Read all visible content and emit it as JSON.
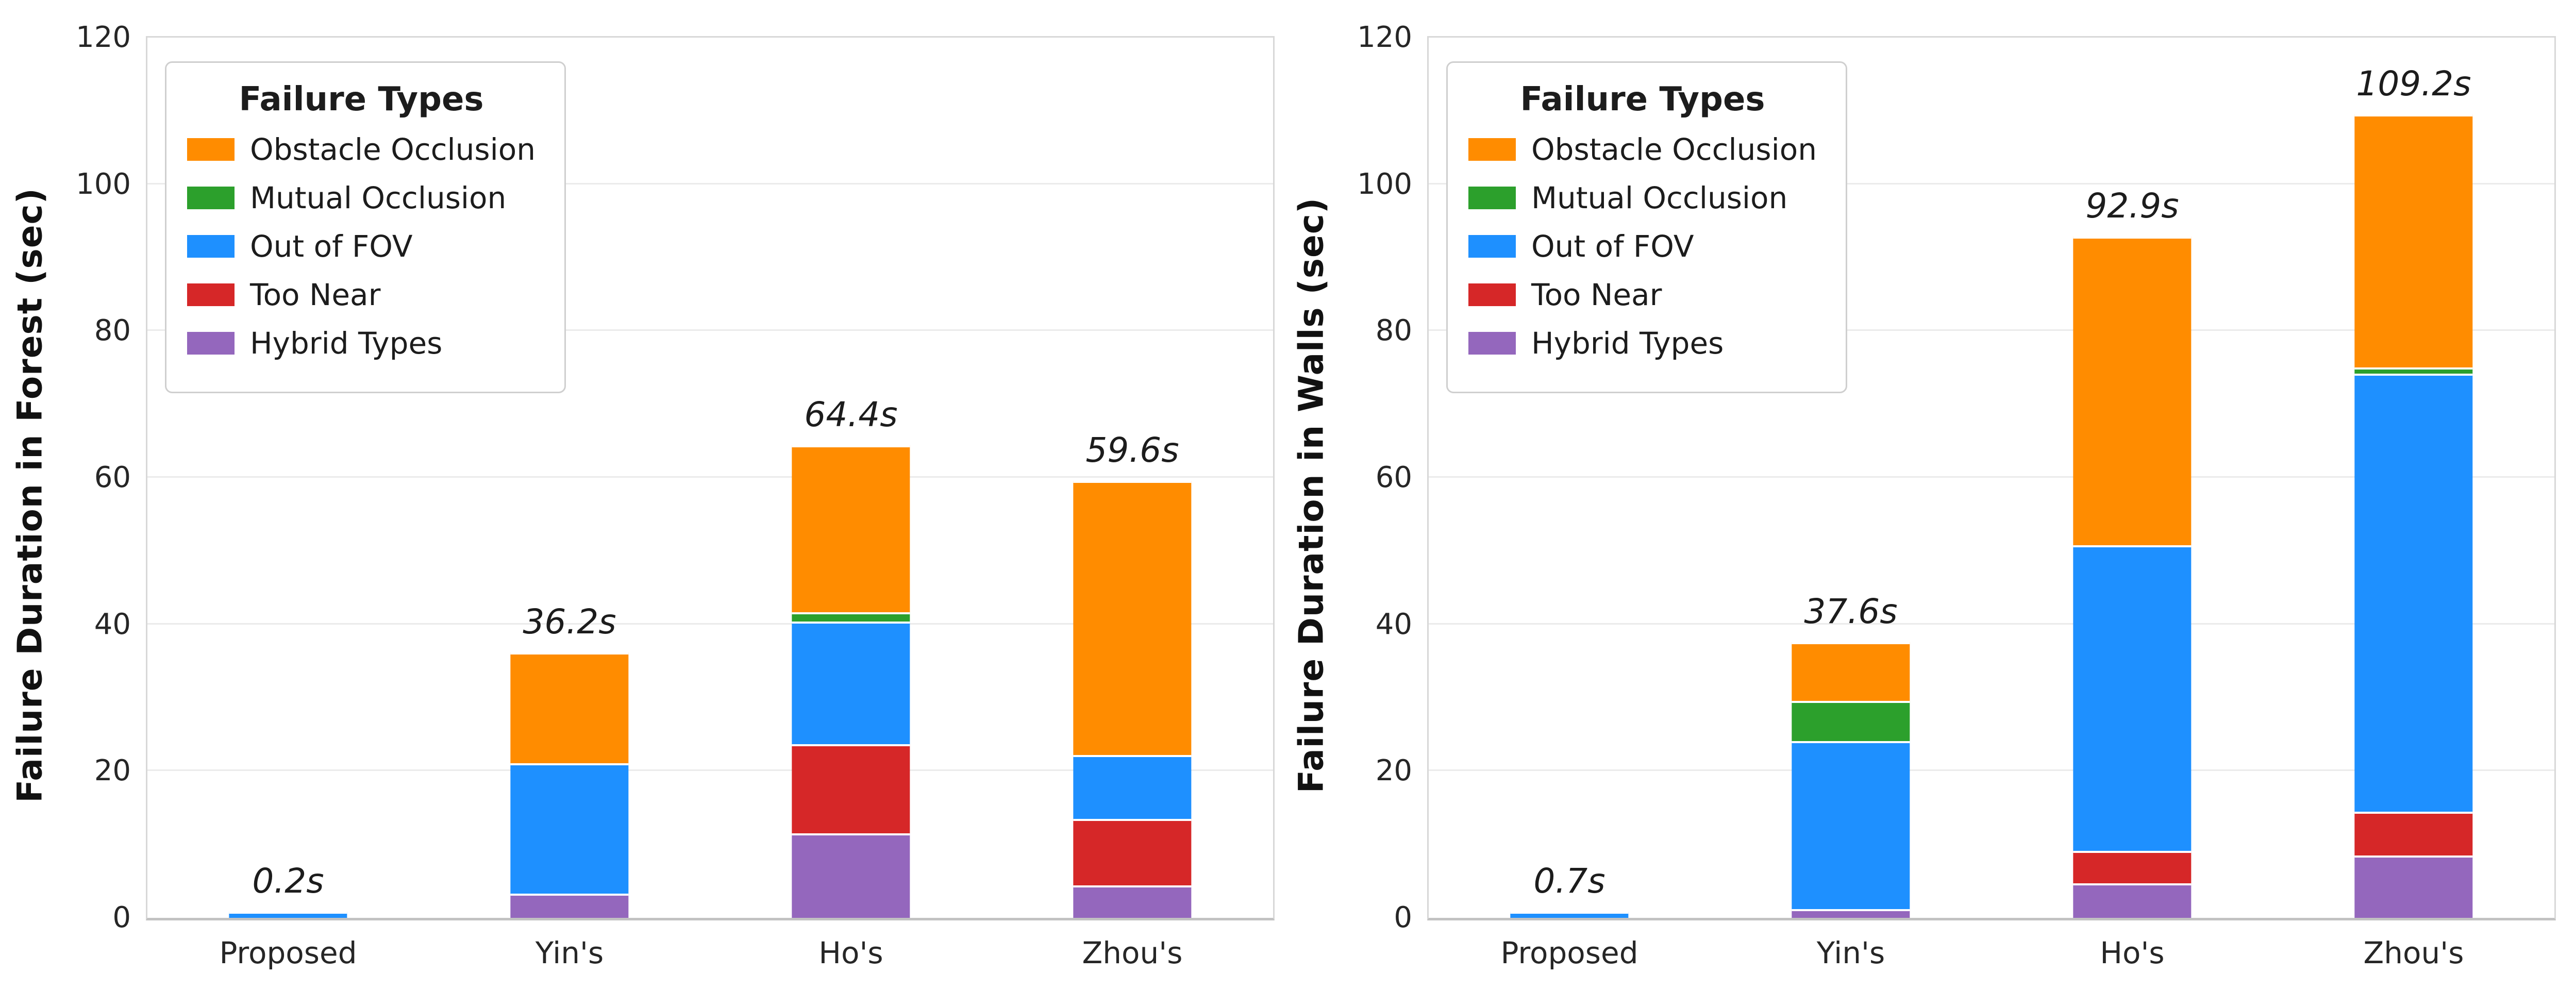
{
  "colors": {
    "obstacle_occlusion": "#FF8C00",
    "mutual_occlusion": "#2CA02C",
    "out_of_fov": "#1E90FF",
    "too_near": "#D62728",
    "hybrid_types": "#9467BD",
    "grid": "#EBEBEB",
    "spine": "#D8D8D8",
    "text": "#262626"
  },
  "legend": {
    "title": "Failure Types",
    "entries": [
      {
        "label": "Obstacle Occlusion",
        "color": "#FF8C00"
      },
      {
        "label": "Mutual Occlusion",
        "color": "#2CA02C"
      },
      {
        "label": "Out of FOV",
        "color": "#1E90FF"
      },
      {
        "label": "Too Near",
        "color": "#D62728"
      },
      {
        "label": "Hybrid Types",
        "color": "#9467BD"
      }
    ]
  },
  "chart_data": [
    {
      "type": "bar",
      "stacked": true,
      "ylabel": "Failure Duration in Forest (sec)",
      "ylim": [
        0,
        120
      ],
      "yticks": [
        0,
        20,
        40,
        60,
        80,
        100,
        120
      ],
      "grid": "horizontal",
      "legend_position": "upper-left",
      "categories": [
        "Proposed",
        "Yin's",
        "Ho's",
        "Zhou's"
      ],
      "series": [
        {
          "name": "Hybrid Types",
          "color": "#9467BD",
          "values": [
            0,
            3.3,
            11.5,
            4.4
          ]
        },
        {
          "name": "Too Near",
          "color": "#D62728",
          "values": [
            0,
            0,
            12.2,
            9.1
          ]
        },
        {
          "name": "Out of FOV",
          "color": "#1E90FF",
          "values": [
            0.2,
            17.8,
            16.7,
            8.7
          ]
        },
        {
          "name": "Mutual Occlusion",
          "color": "#2CA02C",
          "values": [
            0,
            0,
            1.3,
            0
          ]
        },
        {
          "name": "Obstacle Occlusion",
          "color": "#FF8C00",
          "values": [
            0,
            15.1,
            22.7,
            37.4
          ]
        }
      ],
      "totals": [
        0.2,
        36.2,
        64.4,
        59.6
      ],
      "total_labels": [
        "0.2s",
        "36.2s",
        "64.4s",
        "59.6s"
      ]
    },
    {
      "type": "bar",
      "stacked": true,
      "ylabel": "Failure Duration in Walls (sec)",
      "ylim": [
        0,
        120
      ],
      "yticks": [
        0,
        20,
        40,
        60,
        80,
        100,
        120
      ],
      "grid": "horizontal",
      "legend_position": "upper-left",
      "categories": [
        "Proposed",
        "Yin's",
        "Ho's",
        "Zhou's"
      ],
      "series": [
        {
          "name": "Hybrid Types",
          "color": "#9467BD",
          "values": [
            0,
            1.2,
            4.7,
            8.5
          ]
        },
        {
          "name": "Too Near",
          "color": "#D62728",
          "values": [
            0,
            0,
            4.4,
            6.0
          ]
        },
        {
          "name": "Out of FOV",
          "color": "#1E90FF",
          "values": [
            0.7,
            22.9,
            41.7,
            59.7
          ]
        },
        {
          "name": "Mutual Occlusion",
          "color": "#2CA02C",
          "values": [
            0,
            5.5,
            0,
            0.5
          ]
        },
        {
          "name": "Obstacle Occlusion",
          "color": "#FF8C00",
          "values": [
            0,
            8.0,
            42.1,
            34.5
          ]
        }
      ],
      "totals": [
        0.7,
        37.6,
        92.9,
        109.2
      ],
      "total_labels": [
        "0.7s",
        "37.6s",
        "92.9s",
        "109.2s"
      ]
    }
  ]
}
